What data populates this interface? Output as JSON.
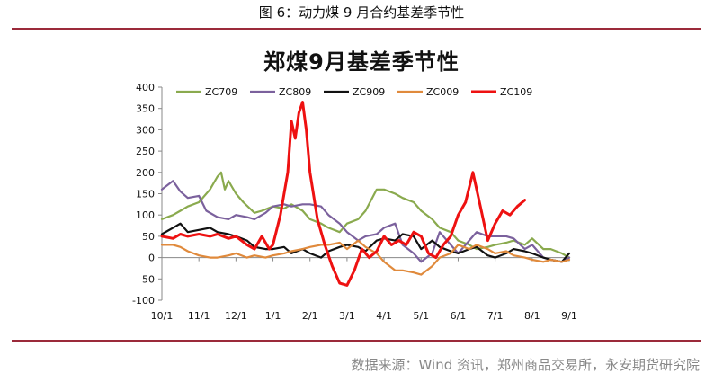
{
  "figure_caption": "图 6：动力煤 9 月合约基差季节性",
  "source": "数据来源：Wind 资讯，郑州商品交易所，永安期货研究院",
  "chart_data": {
    "type": "line",
    "title": "郑煤9月基差季节性",
    "xlabel": "",
    "ylabel": "",
    "ylim": [
      -100,
      400
    ],
    "yticks": [
      -100,
      -50,
      0,
      50,
      100,
      150,
      200,
      250,
      300,
      350,
      400
    ],
    "x_tick_labels": [
      "10/1",
      "11/1",
      "12/1",
      "1/1",
      "2/1",
      "3/1",
      "4/1",
      "5/1",
      "6/1",
      "7/1",
      "8/1",
      "9/1"
    ],
    "grid": false,
    "legend_position": "top",
    "x_unit": "month index from 10/1 (0 = 10/1, 11 = 9/1)",
    "series": [
      {
        "name": "ZC709",
        "color": "#8aaa4e",
        "x": [
          0,
          0.3,
          0.5,
          0.7,
          1.0,
          1.3,
          1.5,
          1.6,
          1.7,
          1.8,
          2.0,
          2.2,
          2.5,
          2.7,
          3.0,
          3.3,
          3.5,
          3.8,
          4.0,
          4.3,
          4.5,
          4.8,
          5.0,
          5.3,
          5.5,
          5.8,
          6.0,
          6.3,
          6.5,
          6.8,
          7.0,
          7.3,
          7.5,
          7.8,
          8.0,
          8.3,
          8.5,
          8.8,
          9.0,
          9.3,
          9.5,
          9.8,
          10.0,
          10.3,
          10.5,
          10.8,
          11.0
        ],
        "values": [
          90,
          100,
          110,
          120,
          130,
          160,
          190,
          200,
          160,
          180,
          150,
          130,
          105,
          110,
          120,
          115,
          125,
          110,
          90,
          80,
          70,
          60,
          80,
          90,
          110,
          160,
          160,
          150,
          140,
          130,
          110,
          90,
          70,
          60,
          40,
          30,
          20,
          25,
          30,
          35,
          40,
          30,
          45,
          20,
          20,
          10,
          0
        ]
      },
      {
        "name": "ZC809",
        "color": "#7b619d",
        "x": [
          0,
          0.3,
          0.5,
          0.7,
          1.0,
          1.2,
          1.5,
          1.8,
          2.0,
          2.3,
          2.5,
          2.8,
          3.0,
          3.3,
          3.5,
          3.8,
          4.0,
          4.3,
          4.5,
          4.8,
          5.0,
          5.3,
          5.5,
          5.8,
          6.0,
          6.3,
          6.5,
          6.8,
          7.0,
          7.3,
          7.5,
          7.8,
          8.0,
          8.3,
          8.5,
          8.8,
          9.0,
          9.3,
          9.5,
          9.8,
          10.0,
          10.3,
          10.5,
          10.8,
          11.0
        ],
        "values": [
          160,
          180,
          155,
          140,
          145,
          110,
          95,
          90,
          100,
          95,
          90,
          105,
          120,
          125,
          120,
          125,
          125,
          120,
          100,
          80,
          60,
          40,
          50,
          55,
          70,
          80,
          30,
          10,
          -10,
          10,
          60,
          30,
          10,
          40,
          60,
          50,
          50,
          50,
          45,
          20,
          30,
          0,
          -5,
          -10,
          0
        ]
      },
      {
        "name": "ZC909",
        "color": "#111111",
        "x": [
          0,
          0.3,
          0.5,
          0.7,
          1.0,
          1.3,
          1.5,
          1.8,
          2.0,
          2.3,
          2.5,
          2.8,
          3.0,
          3.3,
          3.5,
          3.8,
          4.0,
          4.3,
          4.5,
          4.8,
          5.0,
          5.3,
          5.5,
          5.8,
          6.0,
          6.3,
          6.5,
          6.8,
          7.0,
          7.3,
          7.5,
          7.8,
          8.0,
          8.3,
          8.5,
          8.8,
          9.0,
          9.3,
          9.5,
          9.8,
          10.0,
          10.3,
          10.5,
          10.8,
          11.0
        ],
        "values": [
          55,
          70,
          80,
          60,
          65,
          70,
          60,
          55,
          50,
          40,
          25,
          20,
          20,
          25,
          10,
          20,
          10,
          0,
          15,
          25,
          30,
          25,
          15,
          40,
          45,
          40,
          55,
          50,
          20,
          40,
          25,
          15,
          10,
          20,
          25,
          5,
          0,
          10,
          20,
          15,
          10,
          0,
          -5,
          -10,
          10
        ]
      },
      {
        "name": "ZC009",
        "color": "#e08a3c",
        "x": [
          0,
          0.3,
          0.5,
          0.7,
          1.0,
          1.3,
          1.5,
          1.8,
          2.0,
          2.3,
          2.5,
          2.8,
          3.0,
          3.3,
          3.5,
          3.8,
          4.0,
          4.3,
          4.5,
          4.8,
          5.0,
          5.3,
          5.5,
          5.8,
          6.0,
          6.3,
          6.5,
          6.8,
          7.0,
          7.3,
          7.5,
          7.8,
          8.0,
          8.3,
          8.5,
          8.8,
          9.0,
          9.3,
          9.5,
          9.8,
          10.0,
          10.3,
          10.5,
          10.8,
          11.0
        ],
        "values": [
          30,
          30,
          25,
          15,
          5,
          0,
          0,
          5,
          10,
          0,
          5,
          0,
          5,
          10,
          15,
          20,
          25,
          30,
          30,
          35,
          20,
          40,
          25,
          10,
          -10,
          -30,
          -30,
          -35,
          -40,
          -20,
          0,
          10,
          30,
          20,
          30,
          20,
          10,
          15,
          5,
          0,
          -5,
          -10,
          -5,
          -10,
          -5
        ]
      },
      {
        "name": "ZC109",
        "color": "#ee1111",
        "x": [
          0,
          0.3,
          0.5,
          0.7,
          1.0,
          1.3,
          1.5,
          1.8,
          2.0,
          2.3,
          2.5,
          2.7,
          2.9,
          3.0,
          3.2,
          3.4,
          3.5,
          3.6,
          3.7,
          3.8,
          3.9,
          4.0,
          4.2,
          4.4,
          4.6,
          4.8,
          5.0,
          5.2,
          5.4,
          5.6,
          5.8,
          6.0,
          6.2,
          6.4,
          6.6,
          6.8,
          7.0,
          7.2,
          7.4,
          7.6,
          7.8,
          8.0,
          8.2,
          8.4,
          8.6,
          8.8,
          9.0,
          9.2,
          9.4,
          9.6,
          9.8
        ],
        "values": [
          50,
          45,
          55,
          50,
          55,
          50,
          55,
          45,
          50,
          30,
          20,
          50,
          20,
          30,
          100,
          200,
          320,
          280,
          340,
          365,
          300,
          200,
          90,
          30,
          -20,
          -60,
          -65,
          -30,
          20,
          0,
          15,
          50,
          30,
          40,
          30,
          60,
          50,
          10,
          0,
          30,
          50,
          100,
          130,
          200,
          120,
          40,
          80,
          110,
          100,
          120,
          135
        ]
      }
    ]
  }
}
